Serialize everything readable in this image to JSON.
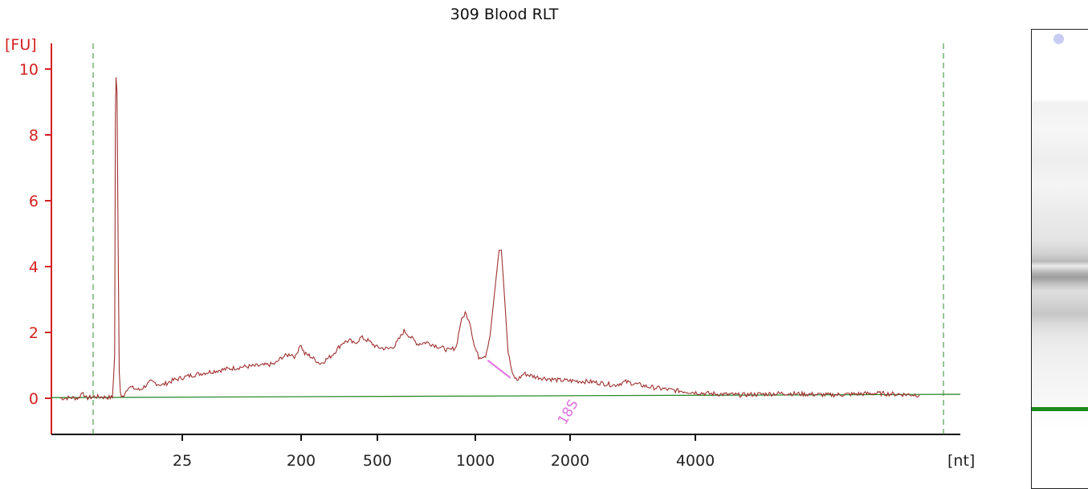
{
  "chart_data": {
    "type": "line",
    "title": "309 Blood RLT",
    "ylabel": "[FU]",
    "xlabel": "[nt]",
    "ylim": [
      -1,
      10.8
    ],
    "yticks": [
      0,
      2,
      4,
      6,
      8,
      10
    ],
    "xticks": [
      "25",
      "200",
      "500",
      "1000",
      "2000",
      "4000"
    ],
    "x_scale": "nonlinear (electropherogram size ladder)",
    "grid": false,
    "colors": {
      "trace": "#a03030",
      "axis": "#d42020",
      "baseline": "#2e8b2e",
      "marker_lines": "#2e8b2e",
      "annotation": "#e070e0",
      "gel_marker": "#1a8a1a"
    },
    "annotations": [
      {
        "label": "18S",
        "x": "2000"
      }
    ],
    "peaks": [
      {
        "x": "25",
        "y": 9.7,
        "note": "lower marker"
      },
      {
        "x": "1000",
        "y": 2.6
      },
      {
        "x": "2000",
        "y": 4.5,
        "label": "18S"
      }
    ],
    "series": [
      {
        "values_xy": [
          [
            20,
            0.0
          ],
          [
            25,
            0.02
          ],
          [
            28,
            0.0
          ],
          [
            30,
            0.22
          ],
          [
            31,
            0.0
          ],
          [
            35,
            0.05
          ],
          [
            43,
            0.02
          ],
          [
            44,
            1.3
          ],
          [
            44.3,
            8.5
          ],
          [
            44.6,
            9.75
          ],
          [
            45,
            9.3
          ],
          [
            45.5,
            4.8
          ],
          [
            46,
            0.8
          ],
          [
            46.5,
            0.2
          ],
          [
            47,
            0.0
          ],
          [
            48,
            0.1
          ],
          [
            50,
            0.35
          ],
          [
            55,
            0.25
          ],
          [
            60,
            0.5
          ],
          [
            65,
            0.4
          ],
          [
            70,
            0.55
          ],
          [
            78,
            0.7
          ],
          [
            90,
            0.85
          ],
          [
            100,
            0.95
          ],
          [
            110,
            1.0
          ],
          [
            115,
            1.05
          ],
          [
            118,
            1.25
          ],
          [
            120,
            1.3
          ],
          [
            122,
            1.35
          ],
          [
            124,
            1.25
          ],
          [
            126,
            1.65
          ],
          [
            128,
            1.35
          ],
          [
            130,
            1.3
          ],
          [
            135,
            1.05
          ],
          [
            140,
            1.3
          ],
          [
            145,
            1.7
          ],
          [
            148,
            1.75
          ],
          [
            150,
            1.65
          ],
          [
            153,
            1.85
          ],
          [
            156,
            1.75
          ],
          [
            160,
            1.55
          ],
          [
            165,
            1.5
          ],
          [
            168,
            1.6
          ],
          [
            172,
            2.05
          ],
          [
            175,
            1.85
          ],
          [
            178,
            1.65
          ],
          [
            182,
            1.7
          ],
          [
            188,
            1.55
          ],
          [
            192,
            1.45
          ],
          [
            195,
            1.55
          ],
          [
            197,
            2.3
          ],
          [
            199,
            2.6
          ],
          [
            201,
            2.35
          ],
          [
            203,
            1.6
          ],
          [
            205,
            1.25
          ],
          [
            208,
            1.3
          ],
          [
            210,
            1.9
          ],
          [
            212,
            3.2
          ],
          [
            214,
            4.5
          ],
          [
            215,
            4.5
          ],
          [
            216,
            3.5
          ],
          [
            218,
            1.4
          ],
          [
            220,
            0.7
          ],
          [
            222,
            0.55
          ],
          [
            225,
            0.75
          ],
          [
            230,
            0.65
          ],
          [
            240,
            0.55
          ],
          [
            255,
            0.5
          ],
          [
            265,
            0.4
          ],
          [
            270,
            0.5
          ],
          [
            280,
            0.35
          ],
          [
            290,
            0.25
          ],
          [
            305,
            0.15
          ],
          [
            320,
            0.1
          ],
          [
            340,
            0.15
          ],
          [
            360,
            0.1
          ],
          [
            380,
            0.15
          ],
          [
            400,
            0.1
          ]
        ]
      }
    ]
  }
}
